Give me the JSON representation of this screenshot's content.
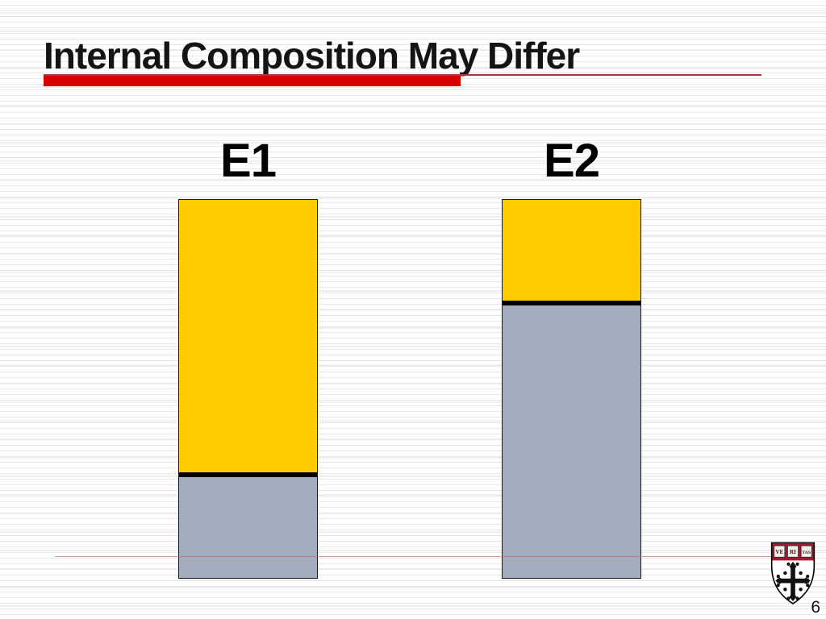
{
  "slide": {
    "title": "Internal Composition May Differ",
    "page_number": "6"
  },
  "crest": {
    "description": "harvard-veritas-shield",
    "motto_syllables": {
      "s1": "VE",
      "s2": "RI",
      "s3": "TAS"
    },
    "band_color": "#9E1B32",
    "cross_color": "#111111"
  },
  "colors": {
    "title_text": "#141414",
    "title_rule_thick": "#D90000",
    "title_rule_thin": "#A63A3A",
    "bottom_rule": "#BE6964",
    "background_stripe": "#E6E6E6"
  },
  "chart_data": {
    "type": "bar",
    "subtype": "stacked",
    "title": "Internal Composition May Differ",
    "xlabel": "",
    "ylabel": "",
    "axes_shown": false,
    "legend": "none",
    "categories": [
      "E1",
      "E2"
    ],
    "series": [
      {
        "name": "top-segment-yellow",
        "color": "#FFCB00",
        "values": [
          0.73,
          0.27
        ]
      },
      {
        "name": "bottom-segment-gray",
        "color": "#A2AEBE",
        "values": [
          0.27,
          0.73
        ]
      }
    ],
    "divider_color": "#000000",
    "values_are": "estimated fraction of each bar's total height (no numeric labels shown)",
    "bars_equal_total_height": true
  }
}
